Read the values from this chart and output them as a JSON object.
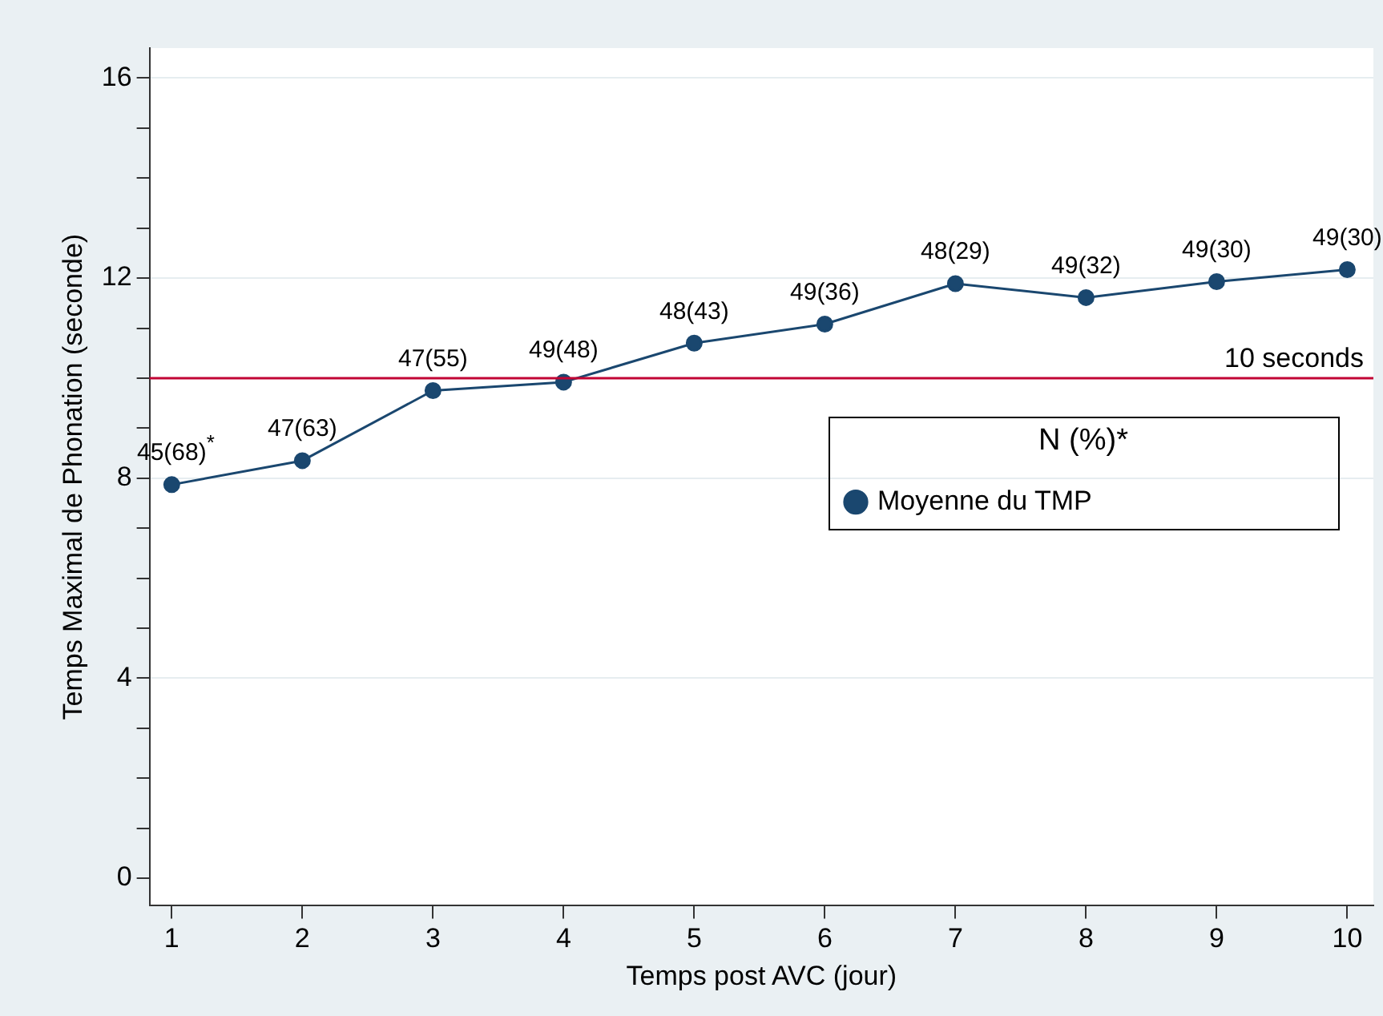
{
  "chart_data": {
    "type": "line",
    "xlabel": "Temps post AVC (jour)",
    "ylabel": "Temps Maximal de Phonation (seconde)",
    "legend_title": "N (%)*",
    "x": [
      1,
      2,
      3,
      4,
      5,
      6,
      7,
      8,
      9,
      10
    ],
    "xlim": [
      0.83,
      10.2
    ],
    "xticks": [
      1,
      2,
      3,
      4,
      5,
      6,
      7,
      8,
      9,
      10
    ],
    "ylim": [
      -0.55,
      16.6
    ],
    "yticks": [
      0,
      {
        "value": 1,
        "label": null
      },
      {
        "value": 2,
        "label": null
      },
      {
        "value": 3,
        "label": null
      },
      4,
      {
        "value": 5,
        "label": null
      },
      {
        "value": 6,
        "label": null
      },
      {
        "value": 7,
        "label": null
      },
      8,
      {
        "value": 9,
        "label": null
      },
      {
        "value": 10,
        "label": null
      },
      {
        "value": 11,
        "label": null
      },
      12,
      {
        "value": 13,
        "label": null
      },
      {
        "value": 14,
        "label": null
      },
      {
        "value": 15,
        "label": null
      },
      16
    ],
    "series": [
      {
        "name": "Moyenne du TMP",
        "color": "#1a476f",
        "values": [
          7.87,
          8.35,
          9.75,
          9.92,
          10.7,
          11.08,
          11.89,
          11.61,
          11.93,
          12.17
        ]
      }
    ],
    "annotations": [
      {
        "text": "45(68)$^{*}$",
        "x": 1,
        "y": 7.87
      },
      {
        "text": "47(63)",
        "x": 2,
        "y": 8.35
      },
      {
        "text": "47(55)",
        "x": 3,
        "y": 9.75
      },
      {
        "text": "49(48)",
        "x": 4,
        "y": 9.92
      },
      {
        "text": "48(43)",
        "x": 5,
        "y": 10.7
      },
      {
        "text": "49(36)",
        "x": 6,
        "y": 11.08
      },
      {
        "text": "48(29)",
        "x": 7,
        "y": 11.89
      },
      {
        "text": "49(32)",
        "x": 8,
        "y": 11.61
      },
      {
        "text": "49(30)",
        "x": 9,
        "y": 11.93
      },
      {
        "text": "49(30)",
        "x": 10,
        "y": 12.17
      }
    ],
    "ref_lines": [
      {
        "axis": "y",
        "value": 10,
        "label": "10 seconds",
        "color": "#c10534"
      }
    ],
    "grid": "y",
    "legend": "right",
    "marker": "circle",
    "line_style": "solid"
  }
}
